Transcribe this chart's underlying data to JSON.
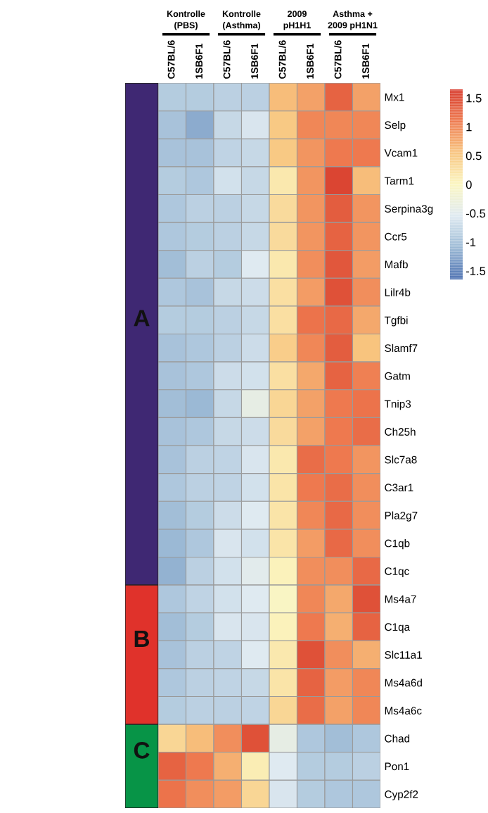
{
  "chart_data": {
    "type": "heatmap",
    "categories": [
      "C57BL/6",
      "1SB6F1",
      "C57BL/6",
      "1SB6F1",
      "C57BL/6",
      "1SB6F1",
      "C57BL/6",
      "1SB6F1"
    ],
    "y_categories": [
      "Mx1",
      "Selp",
      "Vcam1",
      "Tarm1",
      "Serpina3g",
      "Ccr5",
      "Mafb",
      "Lilr4b",
      "Tgfbi",
      "Slamf7",
      "Gatm",
      "Tnip3",
      "Ch25h",
      "Slc7a8",
      "C3ar1",
      "Pla2g7",
      "C1qb",
      "C1qc",
      "Ms4a7",
      "C1qa",
      "Slc11a1",
      "Ms4a6d",
      "Ms4a6c",
      "Chad",
      "Pon1",
      "Cyp2f2"
    ],
    "cells": [
      [
        -0.9,
        -0.9,
        -0.85,
        -0.85,
        0.6,
        0.8,
        1.3,
        0.8
      ],
      [
        -1.0,
        -1.2,
        -0.75,
        -0.6,
        0.5,
        1.0,
        1.0,
        1.0
      ],
      [
        -1.0,
        -1.0,
        -0.8,
        -0.75,
        0.5,
        0.9,
        1.1,
        1.1
      ],
      [
        -0.9,
        -0.95,
        -0.65,
        -0.75,
        0.15,
        0.9,
        1.55,
        0.6
      ],
      [
        -0.95,
        -0.85,
        -0.85,
        -0.75,
        0.3,
        0.9,
        1.35,
        0.9
      ],
      [
        -0.95,
        -0.9,
        -0.85,
        -0.75,
        0.3,
        0.9,
        1.3,
        0.9
      ],
      [
        -1.05,
        -0.85,
        -0.9,
        -0.55,
        0.15,
        0.95,
        1.4,
        0.85
      ],
      [
        -0.95,
        -1.0,
        -0.75,
        -0.7,
        0.25,
        0.85,
        1.45,
        0.95
      ],
      [
        -0.9,
        -0.9,
        -0.85,
        -0.75,
        0.25,
        1.15,
        1.25,
        0.75
      ],
      [
        -1.0,
        -0.95,
        -0.85,
        -0.7,
        0.45,
        1.0,
        1.35,
        0.55
      ],
      [
        -1.0,
        -0.95,
        -0.7,
        -0.65,
        0.25,
        0.75,
        1.3,
        1.05
      ],
      [
        -1.05,
        -1.1,
        -0.75,
        -0.4,
        0.35,
        0.8,
        1.1,
        1.15
      ],
      [
        -1.0,
        -0.95,
        -0.75,
        -0.7,
        0.3,
        0.8,
        1.1,
        1.2
      ],
      [
        -1.0,
        -0.85,
        -0.8,
        -0.6,
        0.15,
        1.2,
        1.1,
        0.9
      ],
      [
        -0.95,
        -0.85,
        -0.8,
        -0.65,
        0.2,
        1.1,
        1.2,
        0.95
      ],
      [
        -1.05,
        -0.9,
        -0.7,
        -0.55,
        0.2,
        1.0,
        1.25,
        0.95
      ],
      [
        -1.1,
        -0.95,
        -0.6,
        -0.65,
        0.2,
        0.85,
        1.25,
        0.95
      ],
      [
        -1.15,
        -0.85,
        -0.65,
        -0.5,
        0.05,
        0.95,
        0.95,
        1.25
      ],
      [
        -0.95,
        -0.8,
        -0.65,
        -0.55,
        -0.05,
        1.0,
        0.75,
        1.45
      ],
      [
        -1.05,
        -0.9,
        -0.6,
        -0.6,
        0.05,
        1.1,
        0.7,
        1.3
      ],
      [
        -1.0,
        -0.85,
        -0.8,
        -0.55,
        0.15,
        1.45,
        0.95,
        0.7
      ],
      [
        -0.95,
        -0.85,
        -0.8,
        -0.75,
        0.2,
        1.3,
        0.85,
        1.0
      ],
      [
        -0.9,
        -0.85,
        -0.85,
        -0.8,
        0.35,
        1.2,
        0.8,
        1.0
      ],
      [
        0.35,
        0.6,
        0.95,
        1.45,
        -0.4,
        -0.95,
        -1.05,
        -0.95
      ],
      [
        1.3,
        1.1,
        0.7,
        0.1,
        -0.55,
        -0.9,
        -0.9,
        -0.85
      ],
      [
        1.15,
        0.95,
        0.85,
        0.35,
        -0.6,
        -0.9,
        -0.95,
        -0.95
      ]
    ],
    "clim": [
      -1.65,
      1.65
    ],
    "cticks": [
      1.5,
      1,
      0.5,
      0,
      {
        "value": -0.5,
        "label": "-0.5"
      },
      {
        "value": -1,
        "label": "-1"
      },
      {
        "value": -1.5,
        "label": "-1.5"
      }
    ],
    "annotations": [
      "Kontrolle\n(PBS)",
      "Kontrolle\n(Asthma)",
      "2009\npH1H1",
      "Asthma +\n2009 pH1N1",
      "A",
      "B",
      "C"
    ]
  }
}
